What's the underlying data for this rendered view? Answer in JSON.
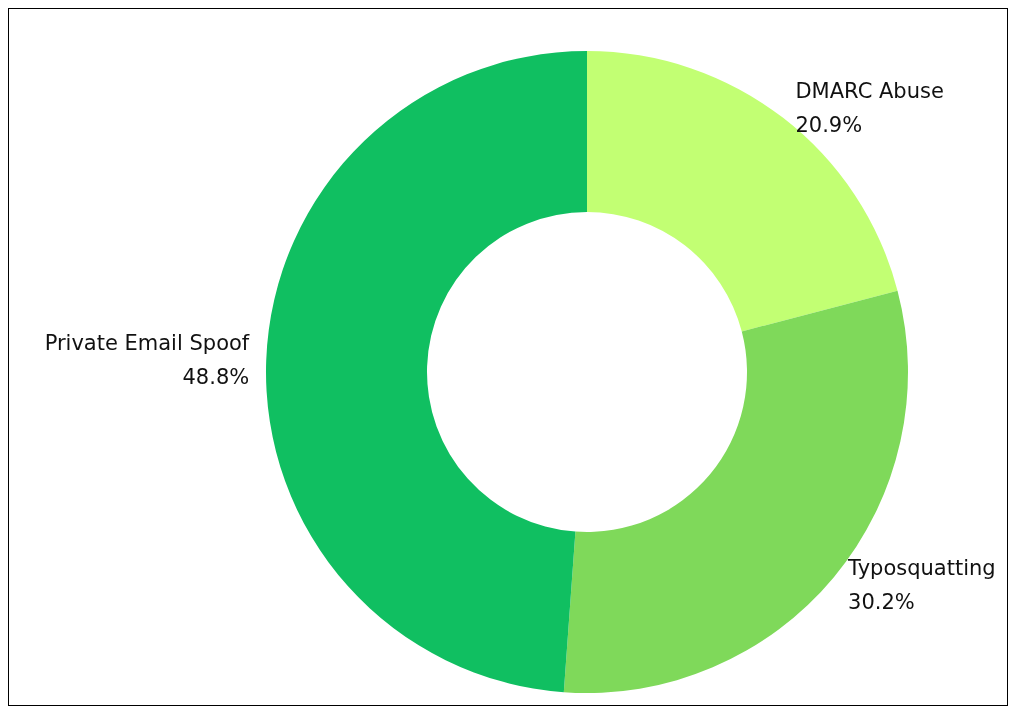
{
  "chart_data": {
    "type": "donut",
    "categories": [
      "DMARC Abuse",
      "Typosquatting",
      "Private Email Spoof"
    ],
    "values": [
      20.9,
      30.2,
      48.8
    ],
    "colors": [
      "#c2ff73",
      "#7fd95a",
      "#10bf61"
    ],
    "value_labels": [
      "20.9%",
      "30.2%",
      "48.8%"
    ]
  }
}
